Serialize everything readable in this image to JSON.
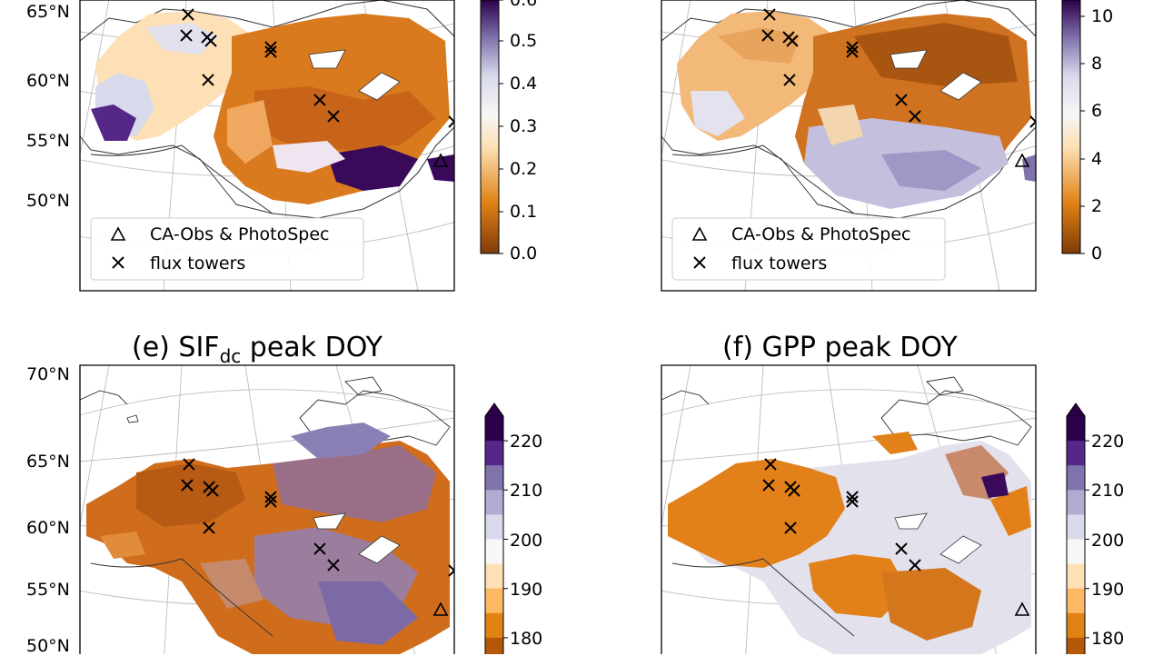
{
  "figure": {
    "legend": {
      "triangle_label": "CA-Obs & PhotoSpec",
      "cross_label": "flux towers"
    },
    "panels": [
      {
        "id": "c",
        "lat_labels": [
          "65°N",
          "60°N",
          "55°N",
          "50°N"
        ],
        "colorbar": {
          "ticks": [
            "0.0",
            "0.1",
            "0.2",
            "0.3",
            "0.4",
            "0.5",
            "0.6"
          ],
          "range": [
            0.0,
            0.6
          ],
          "extend": "none",
          "colors": [
            "#7f3b08",
            "#e08214",
            "#fee0b6",
            "#f7f7f7",
            "#d8daeb",
            "#8073ac",
            "#2d004b"
          ]
        }
      },
      {
        "id": "d",
        "lat_labels": [],
        "colorbar": {
          "ticks": [
            "0",
            "2",
            "4",
            "6",
            "8",
            "10"
          ],
          "range": [
            0,
            11
          ],
          "extend": "none",
          "colors": [
            "#7f3b08",
            "#e08214",
            "#fee0b6",
            "#f7f7f7",
            "#d8daeb",
            "#8073ac",
            "#2d004b"
          ]
        }
      },
      {
        "id": "e",
        "title": "(e) SIF",
        "title_sub": "dc",
        "title_suffix": " peak DOY",
        "lat_labels": [
          "70°N",
          "65°N",
          "60°N",
          "55°N",
          "50°N"
        ],
        "colorbar": {
          "ticks": [
            "220",
            "210",
            "200",
            "190",
            "180"
          ],
          "extend": "max",
          "bins": [
            "#2d004b",
            "#542788",
            "#8073ac",
            "#b2abd2",
            "#d8daeb",
            "#f7f7f7",
            "#fee0b6",
            "#fdb863",
            "#e08214",
            "#b35806"
          ]
        }
      },
      {
        "id": "f",
        "title": "(f) GPP peak DOY",
        "lat_labels": [],
        "colorbar": {
          "ticks": [
            "220",
            "210",
            "200",
            "190",
            "180"
          ],
          "extend": "max",
          "bins": [
            "#2d004b",
            "#542788",
            "#8073ac",
            "#b2abd2",
            "#d8daeb",
            "#f7f7f7",
            "#fee0b6",
            "#fdb863",
            "#e08214",
            "#b35806"
          ]
        }
      }
    ]
  }
}
